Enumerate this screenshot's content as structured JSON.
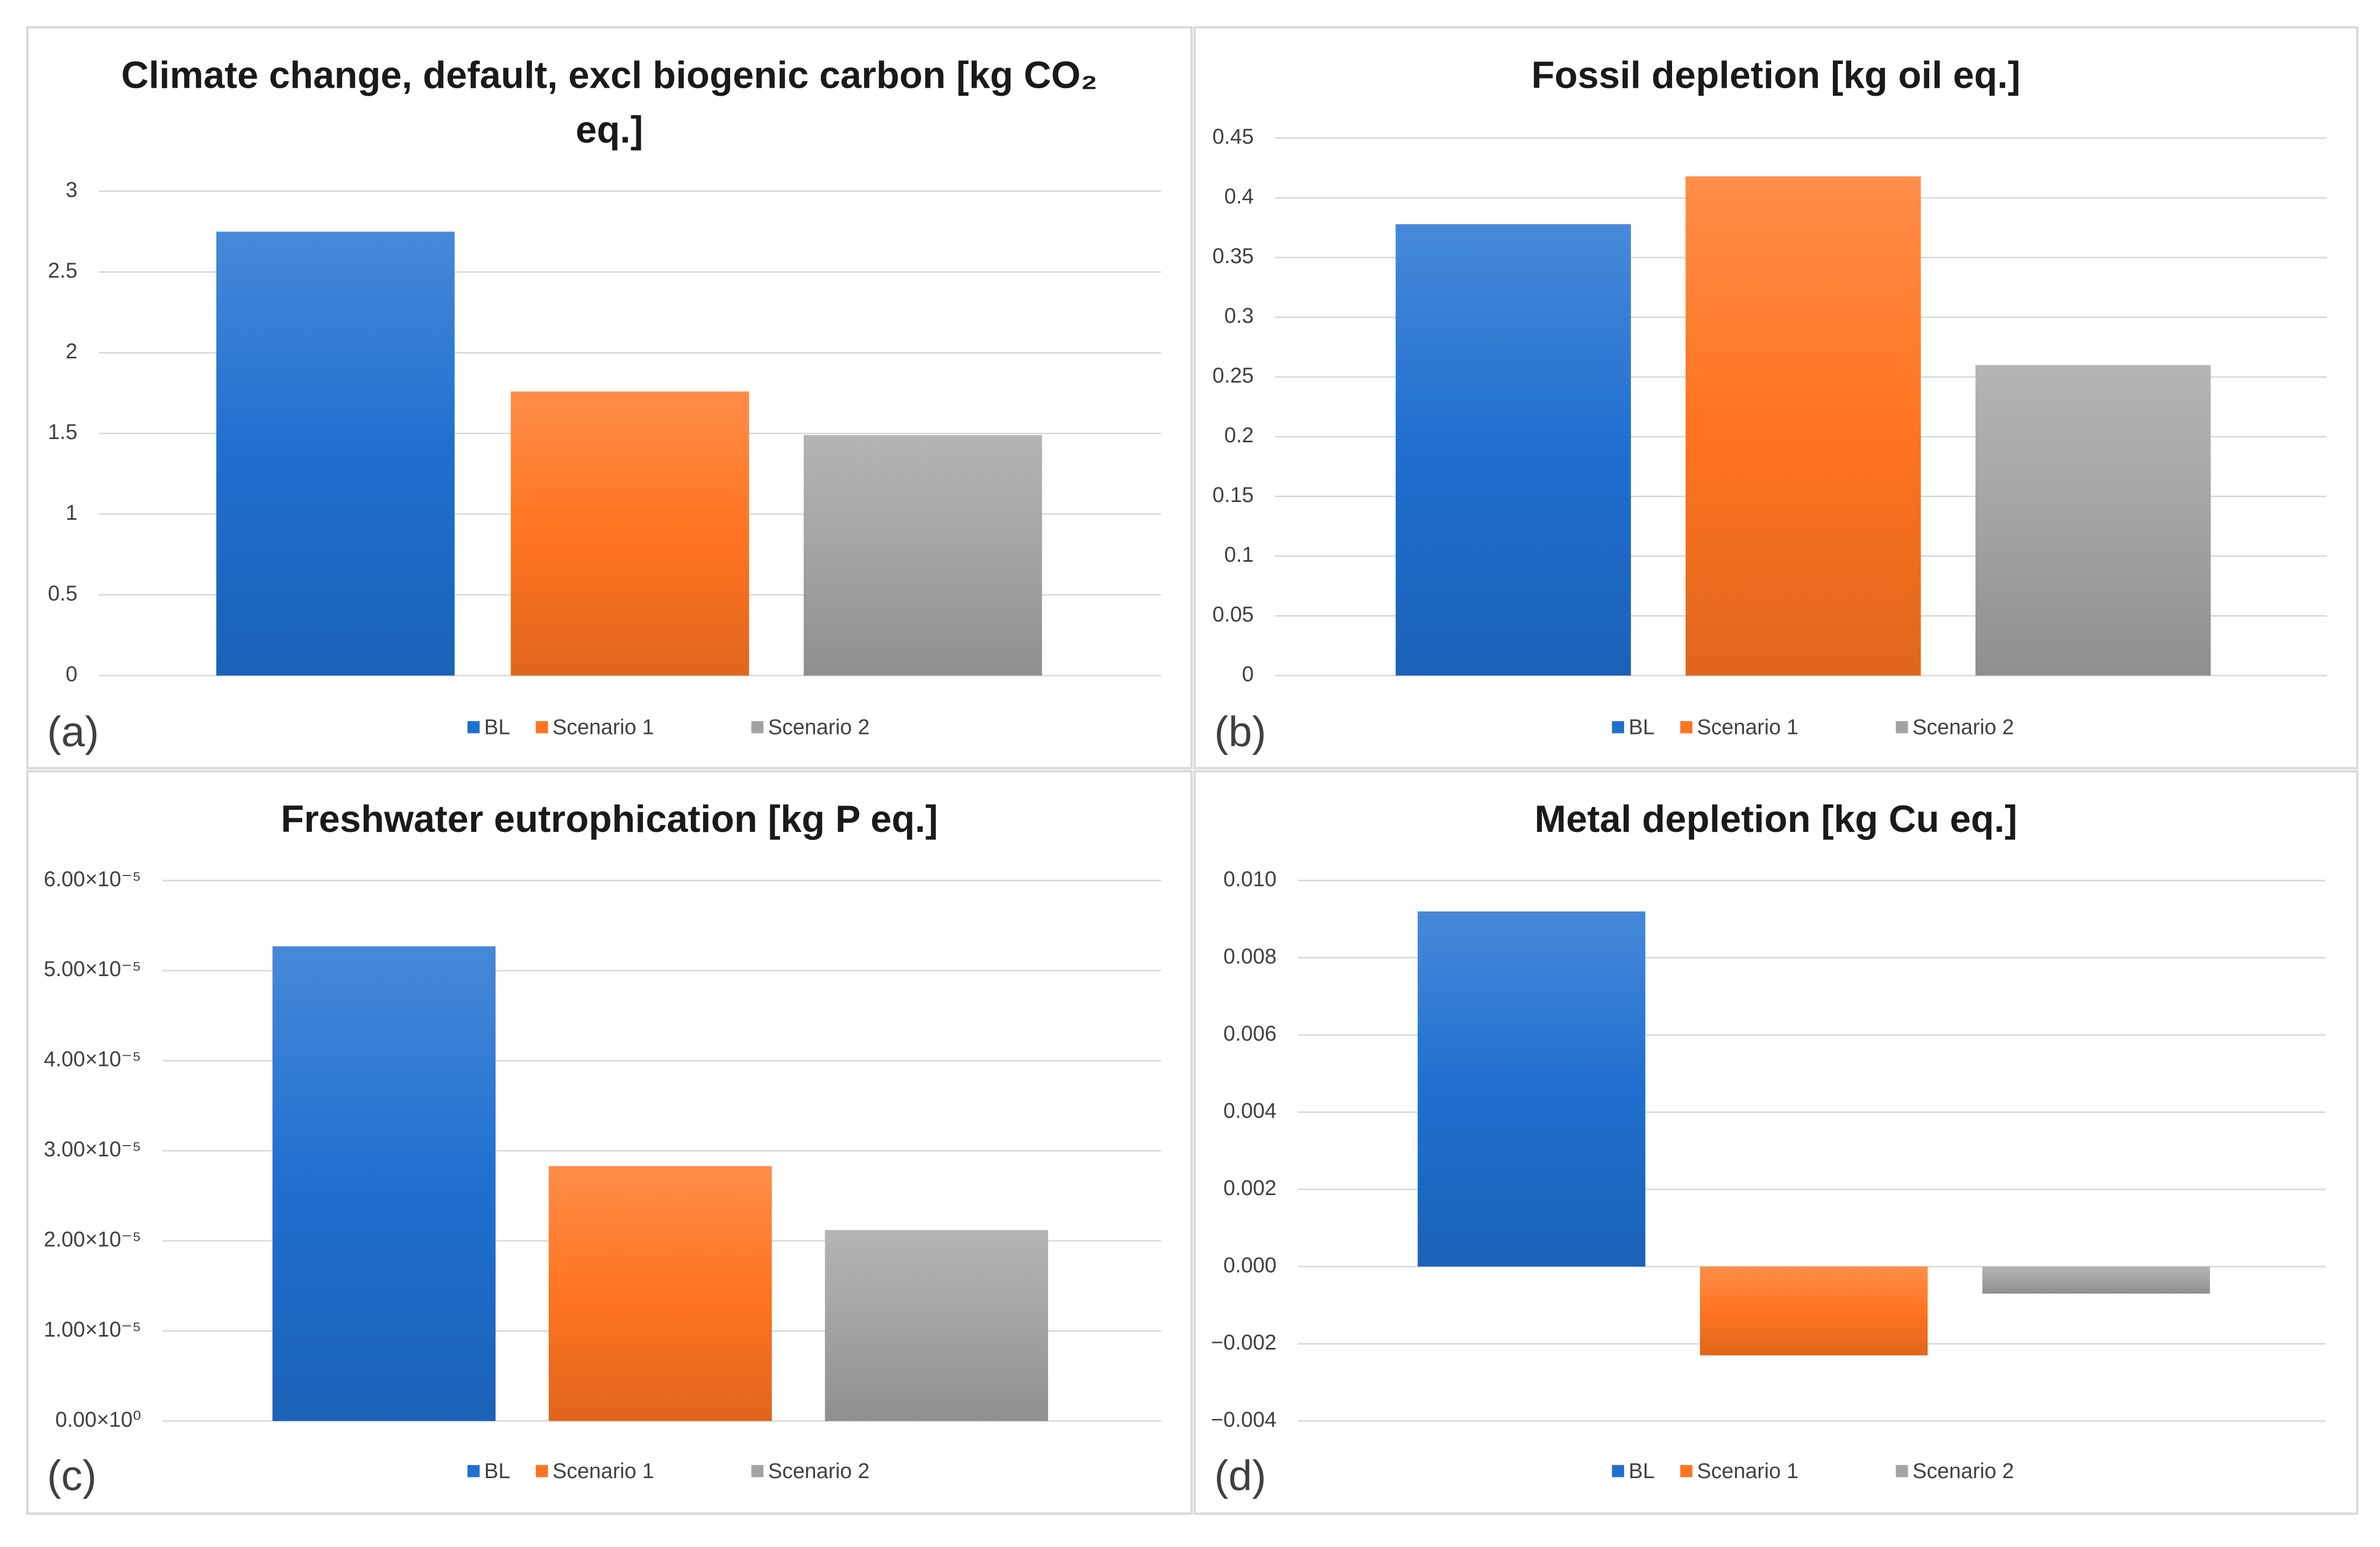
{
  "chart_data": [
    {
      "type": "bar",
      "title": "Climate change, default, excl biogenic carbon [kg CO₂ eq.]",
      "panel_label": "(a)",
      "categories": [
        null
      ],
      "series": [
        {
          "name": "BL",
          "color": "#1f6fd0",
          "values": [
            2.75
          ]
        },
        {
          "name": "Scenario 1",
          "color": "#ff7420",
          "values": [
            1.76
          ]
        },
        {
          "name": "Scenario 2",
          "color": "#a3a3a3",
          "values": [
            1.49
          ]
        }
      ],
      "ylim": [
        0,
        3
      ],
      "yticks": [
        0,
        0.5,
        1,
        1.5,
        2,
        2.5,
        3
      ],
      "grid": true
    },
    {
      "type": "bar",
      "title": "Fossil depletion [kg oil eq.]",
      "panel_label": "(b)",
      "categories": [
        null
      ],
      "series": [
        {
          "name": "BL",
          "color": "#1f6fd0",
          "values": [
            0.378
          ]
        },
        {
          "name": "Scenario 1",
          "color": "#ff7420",
          "values": [
            0.418
          ]
        },
        {
          "name": "Scenario 2",
          "color": "#a3a3a3",
          "values": [
            0.26
          ]
        }
      ],
      "ylim": [
        0,
        0.45
      ],
      "yticks": [
        0,
        0.05,
        0.1,
        0.15,
        0.2,
        0.25,
        0.3,
        0.35,
        0.4,
        0.45
      ],
      "grid": true
    },
    {
      "type": "bar",
      "title": "Freshwater eutrophication [kg P eq.]",
      "panel_label": "(c)",
      "categories": [
        null
      ],
      "series": [
        {
          "name": "BL",
          "color": "#1f6fd0",
          "values": [
            5.27e-05
          ]
        },
        {
          "name": "Scenario 1",
          "color": "#ff7420",
          "values": [
            2.83e-05
          ]
        },
        {
          "name": "Scenario 2",
          "color": "#a3a3a3",
          "values": [
            2.12e-05
          ]
        }
      ],
      "ylim": [
        0,
        6e-05
      ],
      "yticks": [
        {
          "value": 0,
          "label": "0.00×10⁰"
        },
        {
          "value": 1e-05,
          "label": "1.00×10⁻⁵"
        },
        {
          "value": 2e-05,
          "label": "2.00×10⁻⁵"
        },
        {
          "value": 3e-05,
          "label": "3.00×10⁻⁵"
        },
        {
          "value": 4e-05,
          "label": "4.00×10⁻⁵"
        },
        {
          "value": 5e-05,
          "label": "5.00×10⁻⁵"
        },
        {
          "value": 6e-05,
          "label": "6.00×10⁻⁵"
        }
      ],
      "grid": true
    },
    {
      "type": "bar",
      "title": "Metal depletion [kg Cu eq.]",
      "panel_label": "(d)",
      "categories": [
        null
      ],
      "series": [
        {
          "name": "BL",
          "color": "#1f6fd0",
          "values": [
            0.0092
          ]
        },
        {
          "name": "Scenario 1",
          "color": "#ff7420",
          "values": [
            -0.0023
          ]
        },
        {
          "name": "Scenario 2",
          "color": "#a3a3a3",
          "values": [
            -0.0007
          ]
        }
      ],
      "ylim": [
        -0.004,
        0.01
      ],
      "yticks": [
        {
          "value": -0.004,
          "label": "−0.004"
        },
        {
          "value": -0.002,
          "label": "−0.002"
        },
        {
          "value": 0,
          "label": "0.000"
        },
        {
          "value": 0.002,
          "label": "0.002"
        },
        {
          "value": 0.004,
          "label": "0.004"
        },
        {
          "value": 0.006,
          "label": "0.006"
        },
        {
          "value": 0.008,
          "label": "0.008"
        },
        {
          "value": 0.01,
          "label": "0.010"
        }
      ],
      "grid": true
    }
  ]
}
